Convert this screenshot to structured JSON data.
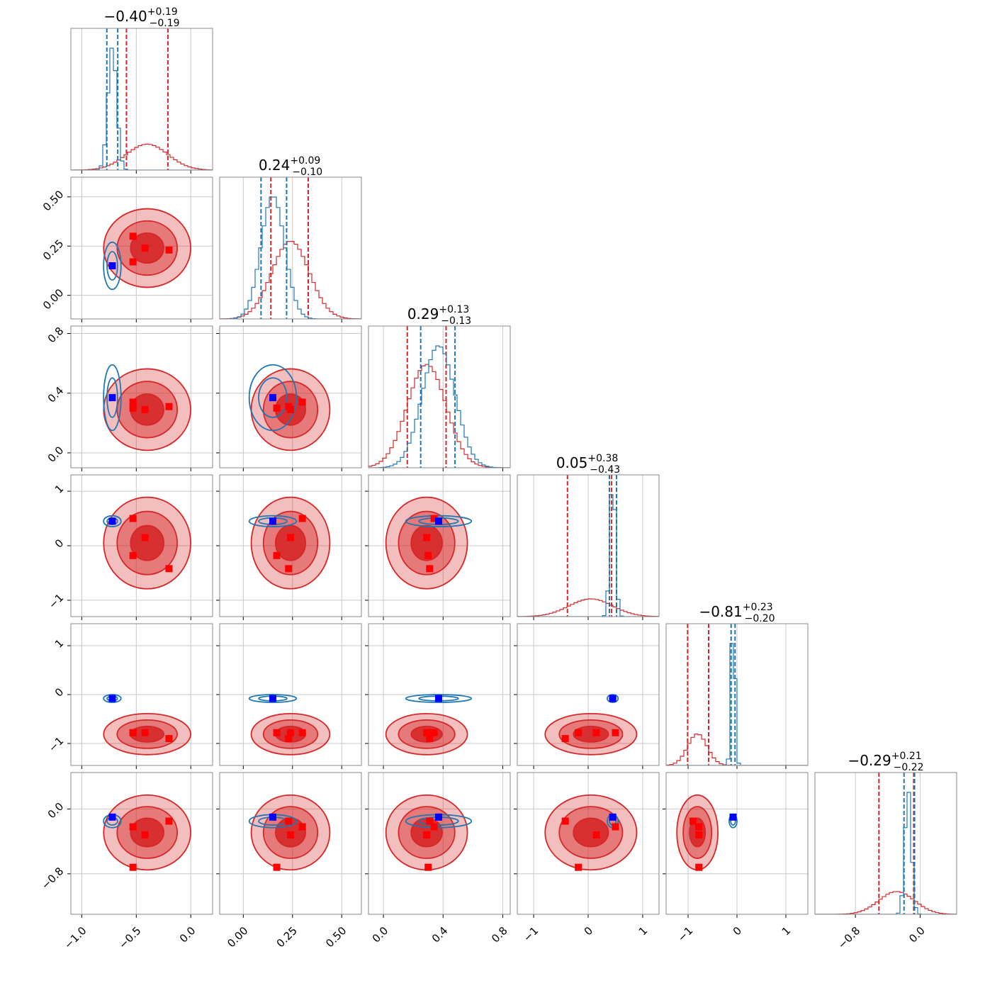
{
  "chart_data": {
    "type": "corner",
    "grid": true,
    "series_colors": [
      "#d62728",
      "#1f77b4"
    ],
    "parameters": [
      {
        "title": {
          "median": "−0.40",
          "plus": "+0.19",
          "minus": "−0.19"
        },
        "lim": [
          -1.1,
          0.2
        ],
        "ticks": [
          {
            "value": -1,
            "label": "−1.0"
          },
          {
            "value": -0.5,
            "label": "−0.5"
          },
          {
            "value": 0,
            "label": "0.0"
          }
        ],
        "series": [
          {
            "mean": -0.4,
            "sd": 0.19,
            "quantiles": [
              -0.59,
              -0.21
            ]
          },
          {
            "mean": -0.72,
            "sd": 0.04,
            "quantiles": [
              -0.77,
              -0.67
            ]
          }
        ]
      },
      {
        "title": {
          "median": "0.24",
          "plus": "+0.09",
          "minus": "−0.10"
        },
        "lim": [
          -0.12,
          0.6
        ],
        "ticks": [
          {
            "value": 0,
            "label": "0.00"
          },
          {
            "value": 0.25,
            "label": "0.25"
          },
          {
            "value": 0.5,
            "label": "0.50"
          }
        ],
        "series": [
          {
            "mean": 0.24,
            "sd": 0.095,
            "quantiles": [
              0.14,
              0.33
            ]
          },
          {
            "mean": 0.15,
            "sd": 0.06,
            "quantiles": [
              0.09,
              0.22
            ]
          }
        ]
      },
      {
        "title": {
          "median": "0.29",
          "plus": "+0.13",
          "minus": "−0.13"
        },
        "lim": [
          -0.1,
          0.85
        ],
        "ticks": [
          {
            "value": 0,
            "label": "0.0"
          },
          {
            "value": 0.4,
            "label": "0.4"
          },
          {
            "value": 0.8,
            "label": "0.8"
          }
        ],
        "series": [
          {
            "mean": 0.29,
            "sd": 0.13,
            "quantiles": [
              0.16,
              0.42
            ]
          },
          {
            "mean": 0.37,
            "sd": 0.11,
            "quantiles": [
              0.25,
              0.48
            ]
          }
        ]
      },
      {
        "title": {
          "median": "0.05",
          "plus": "+0.38",
          "minus": "−0.43"
        },
        "lim": [
          -1.3,
          1.3
        ],
        "ticks": [
          {
            "value": -1,
            "label": "−1"
          },
          0,
          1
        ],
        "series": [
          {
            "mean": 0.05,
            "sd": 0.4,
            "quantiles": [
              -0.38,
              0.43
            ]
          },
          {
            "mean": 0.45,
            "sd": 0.05,
            "quantiles": [
              0.39,
              0.52
            ]
          }
        ]
      },
      {
        "title": {
          "median": "−0.81",
          "plus": "+0.23",
          "minus": "−0.20"
        },
        "lim": [
          -1.45,
          1.45
        ],
        "ticks": [
          {
            "value": -1,
            "label": "−1"
          },
          0,
          1
        ],
        "series": [
          {
            "mean": -0.81,
            "sd": 0.2,
            "quantiles": [
              -1.01,
              -0.58
            ]
          },
          {
            "mean": -0.08,
            "sd": 0.04,
            "quantiles": [
              -0.12,
              -0.04
            ]
          }
        ]
      },
      {
        "title": {
          "median": "−0.29",
          "plus": "+0.21",
          "minus": "−0.22"
        },
        "lim": [
          -1.3,
          0.45
        ],
        "ticks": [
          {
            "value": -0.8,
            "label": "−0.8"
          },
          {
            "value": 0,
            "label": "0.0"
          }
        ],
        "series": [
          {
            "mean": -0.29,
            "sd": 0.22,
            "quantiles": [
              -0.51,
              -0.08
            ]
          },
          {
            "mean": -0.15,
            "sd": 0.04,
            "quantiles": [
              -0.2,
              -0.07
            ]
          }
        ]
      }
    ],
    "markers": [
      {
        "color": "#ff0000",
        "points": [
          [
            -0.53,
            0.3,
            0.34,
            0.5,
            -0.78,
            -0.22
          ],
          [
            -0.53,
            0.17,
            0.3,
            -0.18,
            -0.78,
            -0.72
          ],
          [
            -0.42,
            0.24,
            0.29,
            0.15,
            -0.78,
            -0.32
          ],
          [
            -0.2,
            0.23,
            0.31,
            -0.42,
            -0.9,
            -0.15
          ]
        ]
      },
      {
        "color": "#0000ff",
        "points": [
          [
            -0.72,
            0.15,
            0.37,
            0.45,
            -0.08,
            -0.1
          ]
        ]
      }
    ]
  }
}
